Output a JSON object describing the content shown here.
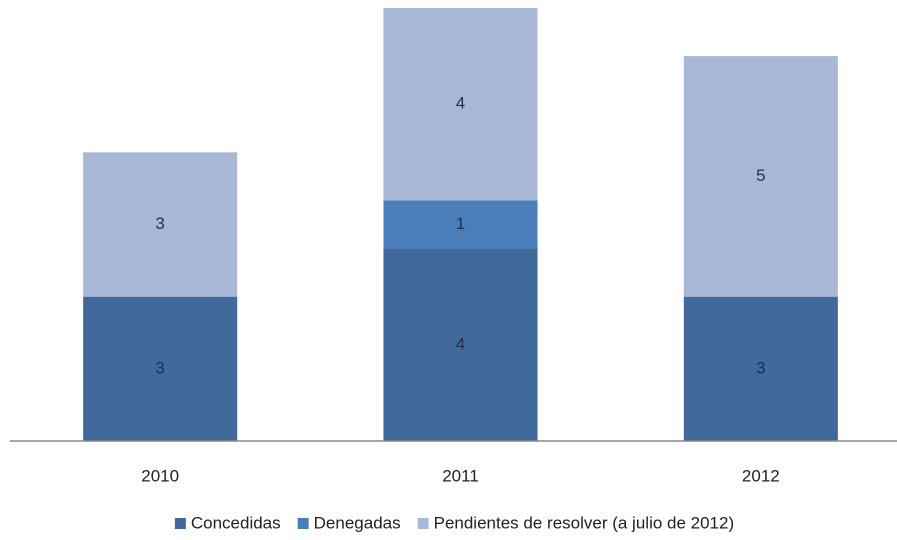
{
  "chart_data": {
    "type": "stacked_bar",
    "categories": [
      "2010",
      "2011",
      "2012"
    ],
    "series": [
      {
        "name": "Concedidas",
        "color": "#41699b",
        "values": [
          3,
          4,
          3
        ]
      },
      {
        "name": "Denegadas",
        "color": "#4a7ebb",
        "values": [
          null,
          1,
          null
        ]
      },
      {
        "name": "Pendientes de resolver (a julio de 2012)",
        "color": "#a9b8d6",
        "values": [
          3,
          4,
          5
        ]
      }
    ],
    "ylim": [
      0,
      9
    ],
    "legend": "bottom"
  }
}
